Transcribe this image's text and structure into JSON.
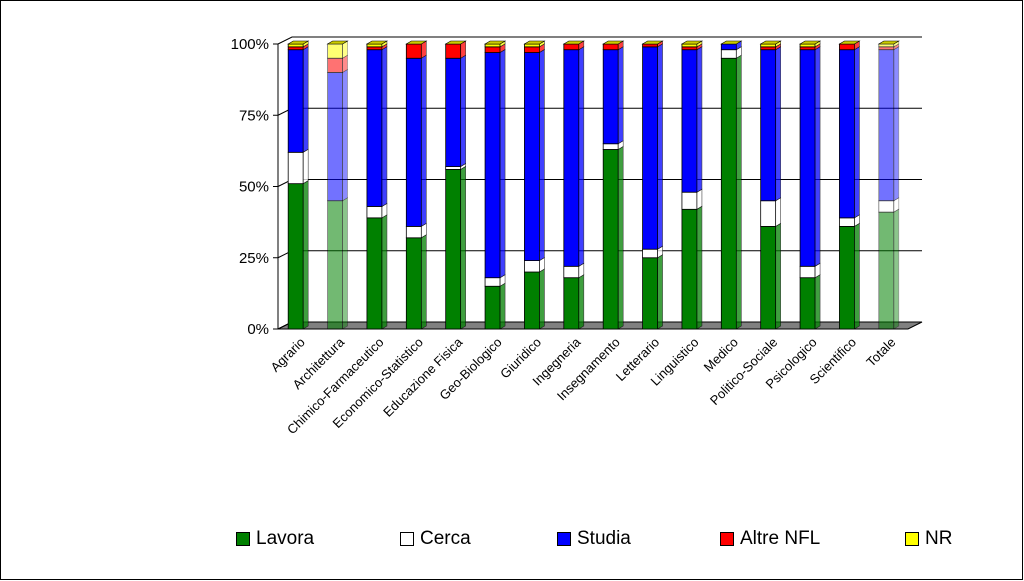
{
  "chart_data": {
    "type": "bar",
    "stacked": true,
    "percent": true,
    "categories": [
      "Agrario",
      "Architettura",
      "Chimico-Farmaceutico",
      "Economico-Statistico",
      "Educazione Fisica",
      "Geo-Biologico",
      "Giuridico",
      "Ingegneria",
      "Insegnamento",
      "Letterario",
      "Linguistico",
      "Medico",
      "Politico-Sociale",
      "Psicologico",
      "Scientifico",
      "Totale"
    ],
    "series": [
      {
        "name": "Lavora",
        "color": "#008000",
        "values": [
          51,
          45,
          39,
          32,
          56,
          15,
          20,
          18,
          63,
          25,
          42,
          95,
          36,
          18,
          36,
          41
        ]
      },
      {
        "name": "Cerca",
        "color": "#ffffff",
        "values": [
          11,
          0,
          4,
          4,
          1,
          3,
          4,
          4,
          2,
          3,
          6,
          3,
          9,
          4,
          3,
          4
        ]
      },
      {
        "name": "Studia",
        "color": "#0000ff",
        "values": [
          36,
          45,
          55,
          59,
          38,
          79,
          73,
          76,
          33,
          71,
          50,
          2,
          53,
          76,
          59,
          53
        ]
      },
      {
        "name": "Altre NFL",
        "color": "#ff0000",
        "values": [
          1,
          5,
          1,
          5,
          5,
          2,
          2,
          2,
          2,
          1,
          1,
          0,
          1,
          1,
          2,
          1
        ]
      },
      {
        "name": "NR",
        "color": "#ffff00",
        "values": [
          1,
          5,
          1,
          0,
          0,
          1,
          1,
          0,
          0,
          0,
          1,
          0,
          1,
          1,
          0,
          1
        ]
      }
    ],
    "yticks": [
      "0%",
      "25%",
      "50%",
      "75%",
      "100%"
    ],
    "ylim": [
      0,
      100
    ],
    "grid": true,
    "legend_position": "bottom"
  }
}
